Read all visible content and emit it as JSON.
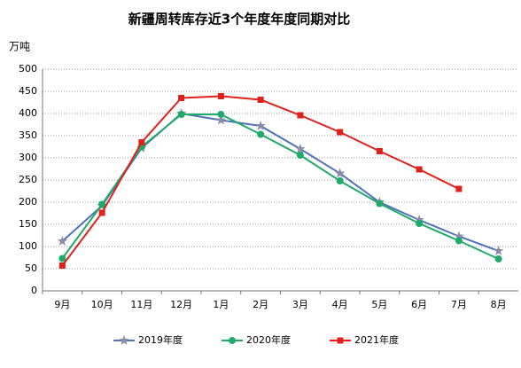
{
  "chart_data": {
    "type": "line",
    "title": "新疆周转库存近3个年度年度同期对比",
    "y_label": "万吨",
    "categories": [
      "9月",
      "10月",
      "11月",
      "12月",
      "1月",
      "2月",
      "3月",
      "4月",
      "5月",
      "6月",
      "7月",
      "8月"
    ],
    "series": [
      {
        "name": "2019年度",
        "color": "#4f72b8",
        "marker_color": "#8c8ca8",
        "marker": "star",
        "values": [
          112,
          192,
          322,
          400,
          385,
          372,
          320,
          265,
          200,
          160,
          123,
          90
        ]
      },
      {
        "name": "2020年度",
        "color": "#1faa6b",
        "marker_color": "#1faa6b",
        "marker": "circle",
        "values": [
          73,
          195,
          325,
          398,
          398,
          353,
          306,
          248,
          197,
          152,
          113,
          72
        ]
      },
      {
        "name": "2021年度",
        "color": "#e0201b",
        "marker_color": "#e0201b",
        "marker": "square",
        "values": [
          57,
          176,
          335,
          435,
          439,
          431,
          396,
          358,
          315,
          274,
          230,
          null
        ]
      }
    ],
    "ylim": [
      0,
      500
    ],
    "yticks": [
      0,
      50,
      100,
      150,
      200,
      250,
      300,
      350,
      400,
      450,
      500
    ],
    "grid": true,
    "legend": "bottom"
  }
}
